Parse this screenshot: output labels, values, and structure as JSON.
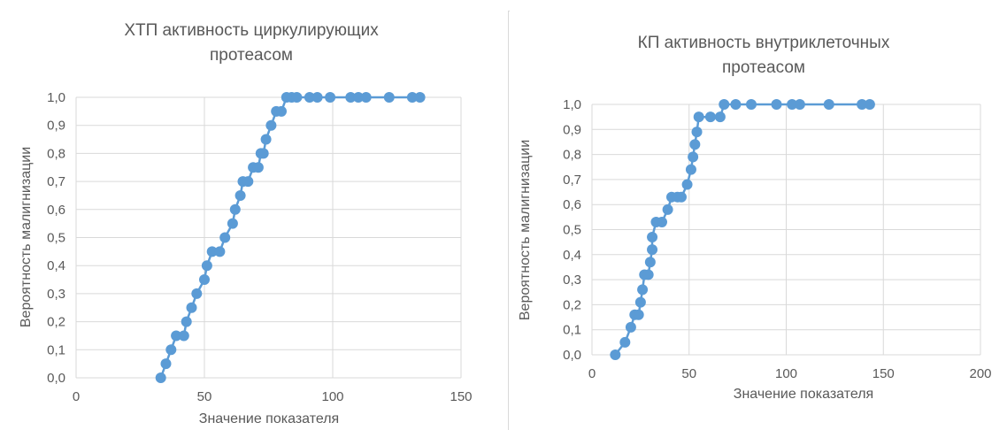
{
  "chart_data": [
    {
      "type": "scatter",
      "title_lines": [
        "ХТП активность циркулирующих",
        "протеасом"
      ],
      "xlabel": "Значение показателя",
      "ylabel": "Вероятность малигнизации",
      "xlim": [
        0,
        150
      ],
      "ylim": [
        0,
        1.0
      ],
      "x_ticks": [
        "0",
        "50",
        "100",
        "150"
      ],
      "y_ticks": [
        "0,0",
        "0,1",
        "0,2",
        "0,3",
        "0,4",
        "0,5",
        "0,6",
        "0,7",
        "0,8",
        "0,9",
        "1,0"
      ],
      "grid": true,
      "line_connected": true,
      "color": "#5b9bd5",
      "points": [
        [
          33,
          0.0
        ],
        [
          35,
          0.05
        ],
        [
          37,
          0.1
        ],
        [
          39,
          0.15
        ],
        [
          42,
          0.15
        ],
        [
          43,
          0.2
        ],
        [
          45,
          0.25
        ],
        [
          47,
          0.3
        ],
        [
          50,
          0.35
        ],
        [
          51,
          0.4
        ],
        [
          53,
          0.45
        ],
        [
          56,
          0.45
        ],
        [
          58,
          0.5
        ],
        [
          61,
          0.55
        ],
        [
          62,
          0.6
        ],
        [
          64,
          0.65
        ],
        [
          65,
          0.7
        ],
        [
          67,
          0.7
        ],
        [
          69,
          0.75
        ],
        [
          71,
          0.75
        ],
        [
          72,
          0.8
        ],
        [
          73,
          0.8
        ],
        [
          74,
          0.85
        ],
        [
          76,
          0.9
        ],
        [
          78,
          0.95
        ],
        [
          80,
          0.95
        ],
        [
          82,
          1.0
        ],
        [
          84,
          1.0
        ],
        [
          86,
          1.0
        ],
        [
          91,
          1.0
        ],
        [
          94,
          1.0
        ],
        [
          99,
          1.0
        ],
        [
          107,
          1.0
        ],
        [
          110,
          1.0
        ],
        [
          113,
          1.0
        ],
        [
          122,
          1.0
        ],
        [
          131,
          1.0
        ],
        [
          134,
          1.0
        ]
      ]
    },
    {
      "type": "scatter",
      "title_lines": [
        "КП активность внутриклеточных",
        "протеасом"
      ],
      "xlabel": "Значение показателя",
      "ylabel": "Вероятность малигнизации",
      "xlim": [
        0,
        200
      ],
      "ylim": [
        0,
        1.0
      ],
      "x_ticks": [
        "0",
        "50",
        "100",
        "150",
        "200"
      ],
      "y_ticks": [
        "0,0",
        "0,1",
        "0,2",
        "0,3",
        "0,4",
        "0,5",
        "0,6",
        "0,7",
        "0,8",
        "0,9",
        "1,0"
      ],
      "grid": true,
      "line_connected": true,
      "color": "#5b9bd5",
      "points": [
        [
          12,
          0.0
        ],
        [
          17,
          0.05
        ],
        [
          20,
          0.11
        ],
        [
          22,
          0.16
        ],
        [
          24,
          0.16
        ],
        [
          25,
          0.21
        ],
        [
          26,
          0.26
        ],
        [
          27,
          0.32
        ],
        [
          29,
          0.32
        ],
        [
          30,
          0.37
        ],
        [
          31,
          0.42
        ],
        [
          31,
          0.47
        ],
        [
          33,
          0.53
        ],
        [
          36,
          0.53
        ],
        [
          39,
          0.58
        ],
        [
          41,
          0.63
        ],
        [
          44,
          0.63
        ],
        [
          46,
          0.63
        ],
        [
          49,
          0.68
        ],
        [
          51,
          0.74
        ],
        [
          52,
          0.79
        ],
        [
          53,
          0.84
        ],
        [
          54,
          0.89
        ],
        [
          55,
          0.95
        ],
        [
          61,
          0.95
        ],
        [
          66,
          0.95
        ],
        [
          68,
          1.0
        ],
        [
          74,
          1.0
        ],
        [
          82,
          1.0
        ],
        [
          95,
          1.0
        ],
        [
          103,
          1.0
        ],
        [
          107,
          1.0
        ],
        [
          122,
          1.0
        ],
        [
          139,
          1.0
        ],
        [
          143,
          1.0
        ]
      ]
    }
  ]
}
